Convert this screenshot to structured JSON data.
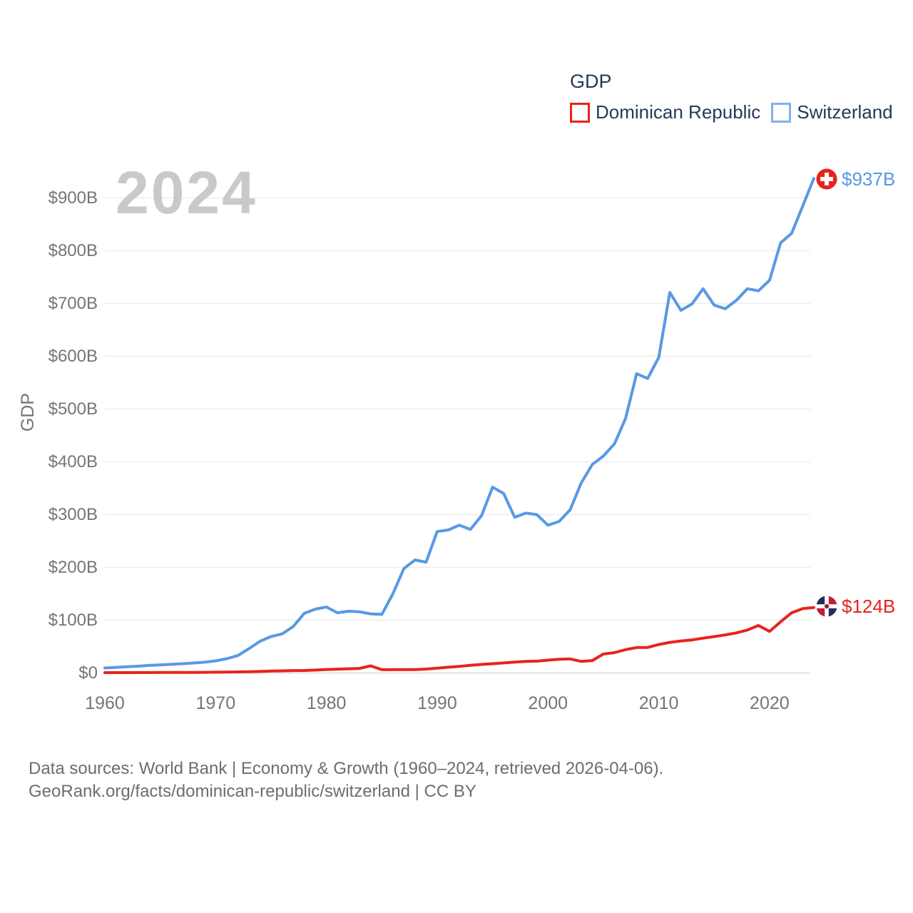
{
  "watermark": "2024",
  "legend": {
    "title": "GDP",
    "items": [
      {
        "label": "Dominican Republic",
        "swatch_color": "#e8231d"
      },
      {
        "label": "Switzerland",
        "swatch_color": "#7fb2ea"
      }
    ]
  },
  "y_axis": {
    "label": "GDP",
    "tick_labels": [
      "$0",
      "$100B",
      "$200B",
      "$300B",
      "$400B",
      "$500B",
      "$600B",
      "$700B",
      "$800B",
      "$900B"
    ]
  },
  "x_axis": {
    "tick_labels": [
      "1960",
      "1970",
      "1980",
      "1990",
      "2000",
      "2010",
      "2020"
    ]
  },
  "annotations": {
    "switzerland_end": "$937B",
    "dominican_end": "$124B"
  },
  "footer": {
    "line1": "Data sources: World Bank | Economy & Growth (1960–2024, retrieved 2026-04-06).",
    "line2": "GeoRank.org/facts/dominican-republic/switzerland | CC BY"
  },
  "colors": {
    "switzerland_line": "#5899e4",
    "dominican_line": "#e8231d",
    "grid": "#ededed",
    "zero_line": "#e2e2e2",
    "tick_text": "#757575",
    "legend_text": "#24395b",
    "watermark_text": "#c9c9c9",
    "footer_text": "#6d6d6d",
    "swiss_flag_red": "#e8231d",
    "dr_flag_blue": "#1e2f5d",
    "dr_flag_red": "#c21f3a"
  },
  "chart_data": {
    "type": "line",
    "title": "GDP",
    "ylabel": "GDP",
    "xlabel": "",
    "ylim": [
      0,
      950
    ],
    "grid": true,
    "legend_position": "top-right",
    "x": [
      1960,
      1961,
      1962,
      1963,
      1964,
      1965,
      1966,
      1967,
      1968,
      1969,
      1970,
      1971,
      1972,
      1973,
      1974,
      1975,
      1976,
      1977,
      1978,
      1979,
      1980,
      1981,
      1982,
      1983,
      1984,
      1985,
      1986,
      1987,
      1988,
      1989,
      1990,
      1991,
      1992,
      1993,
      1994,
      1995,
      1996,
      1997,
      1998,
      1999,
      2000,
      2001,
      2002,
      2003,
      2004,
      2005,
      2006,
      2007,
      2008,
      2009,
      2010,
      2011,
      2012,
      2013,
      2014,
      2015,
      2016,
      2017,
      2018,
      2019,
      2020,
      2021,
      2022,
      2023,
      2024
    ],
    "series": [
      {
        "name": "Switzerland",
        "unit": "billion USD",
        "color": "#5899e4",
        "end_value_label": "$937B",
        "values": [
          9.5,
          10.7,
          11.9,
          12.9,
          14.3,
          15.4,
          16.4,
          17.6,
          18.9,
          20.4,
          23,
          27,
          33,
          46,
          60,
          69,
          74,
          88,
          113,
          121,
          125,
          114,
          117,
          116,
          112,
          111,
          150,
          198,
          214,
          210,
          268,
          271,
          280,
          272,
          298,
          352,
          340,
          295,
          303,
          300,
          280,
          287,
          309,
          360,
          395,
          411,
          434,
          482,
          567,
          558,
          598,
          721,
          687,
          699,
          728,
          697,
          690,
          706,
          728,
          724,
          744,
          815,
          833,
          885,
          937
        ]
      },
      {
        "name": "Dominican Republic",
        "unit": "billion USD",
        "color": "#e8231d",
        "end_value_label": "$124B",
        "values": [
          0.7,
          0.7,
          0.7,
          0.8,
          0.8,
          0.9,
          0.9,
          1.0,
          1.1,
          1.2,
          1.5,
          1.7,
          2.0,
          2.3,
          2.9,
          3.6,
          4.0,
          4.6,
          4.7,
          5.5,
          6.6,
          7.3,
          8.0,
          8.6,
          13.5,
          6.2,
          6.4,
          6.5,
          6.4,
          7.5,
          9.0,
          11.0,
          12.5,
          14.5,
          16.2,
          17.5,
          19.0,
          20.5,
          22.0,
          22.5,
          24.3,
          26.0,
          26.6,
          22.0,
          23.5,
          36.0,
          38.5,
          44.2,
          48.2,
          48.4,
          53.9,
          58.0,
          60.7,
          62.7,
          66.0,
          68.9,
          72.2,
          76.0,
          81.3,
          90.0,
          78.8,
          97.0,
          114.0,
          122.0,
          124.0
        ]
      }
    ]
  }
}
